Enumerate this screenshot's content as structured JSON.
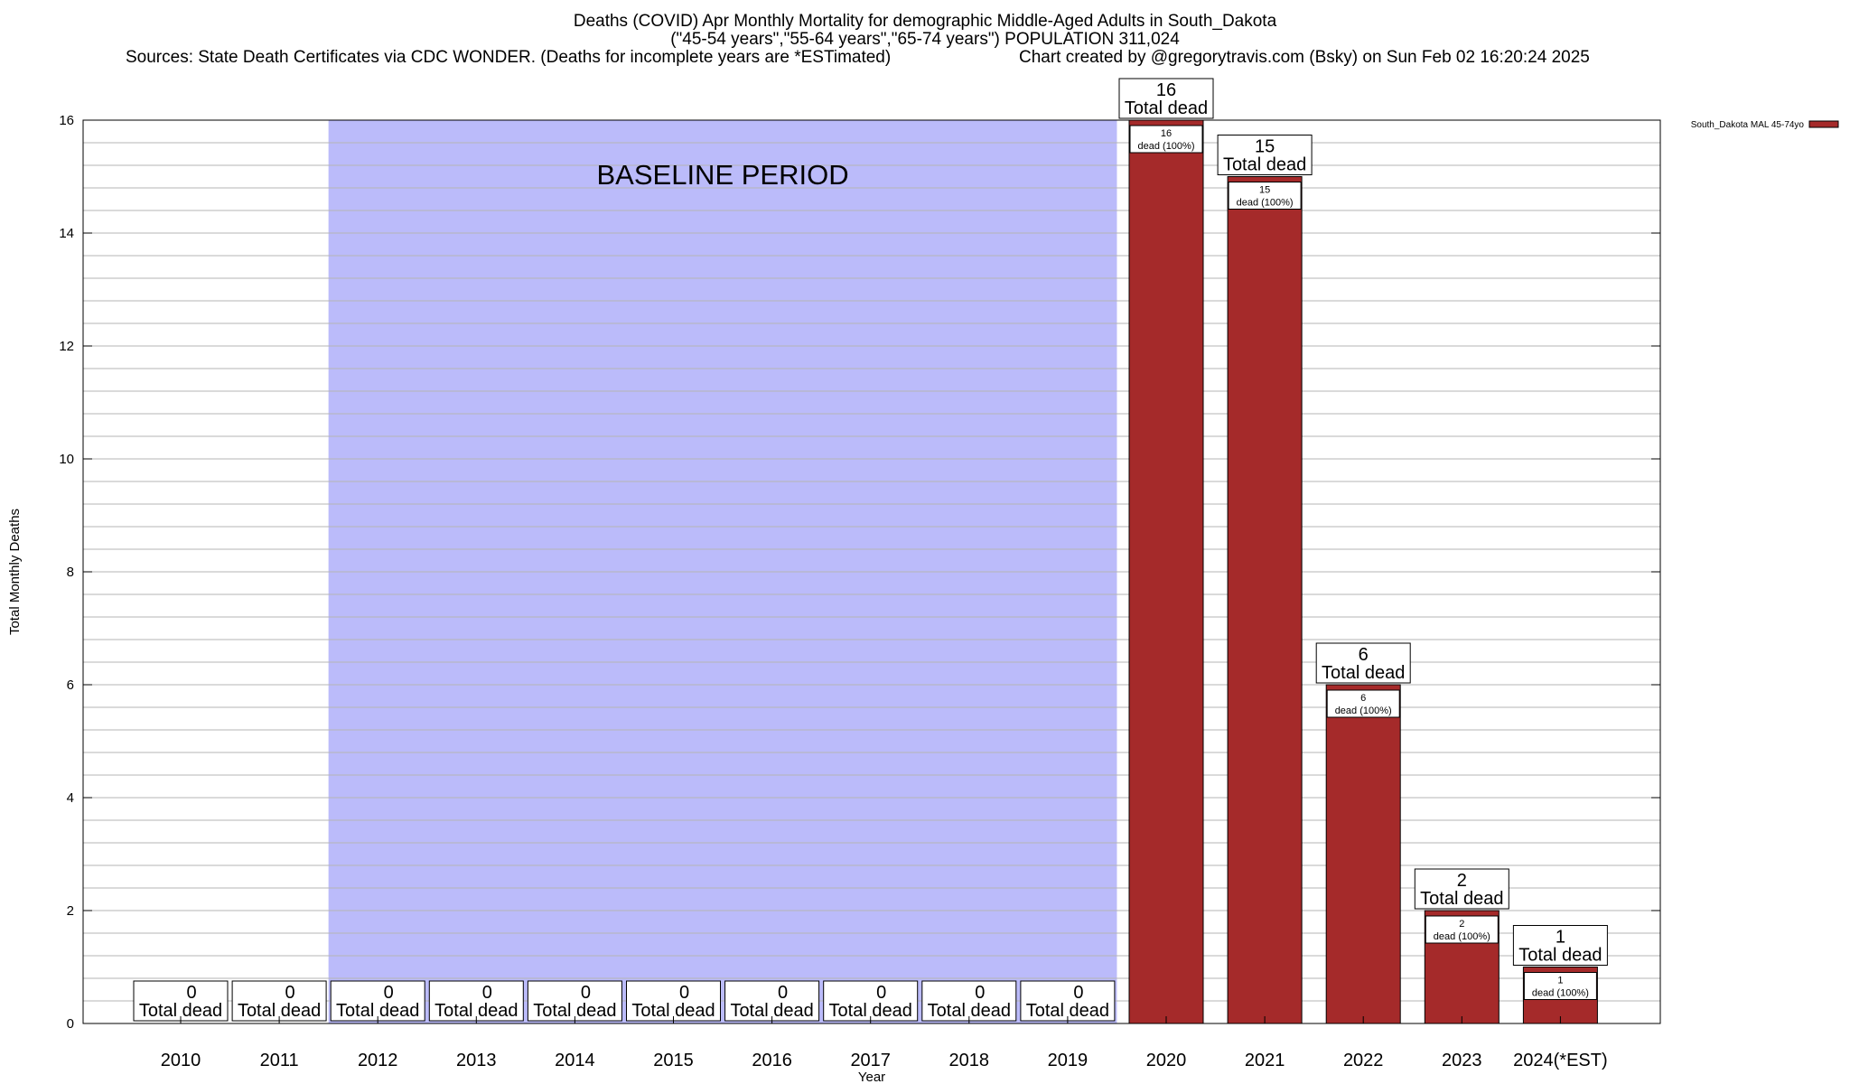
{
  "title_line1": "Deaths (COVID) Apr Monthly Mortality for demographic Middle-Aged Adults in South_Dakota",
  "title_line2": "(\"45-54 years\",\"55-64 years\",\"65-74 years\") POPULATION 311,024",
  "sources_text": "Sources: State Death Certificates via CDC WONDER. (Deaths for incomplete years are *ESTimated)",
  "credit_text": "Chart created by @gregorytravis.com (Bsky) on Sun Feb 02 16:20:24 2025",
  "chart_data": {
    "type": "bar",
    "categories": [
      "2010",
      "2011",
      "2012",
      "2013",
      "2014",
      "2015",
      "2016",
      "2017",
      "2018",
      "2019",
      "2020",
      "2021",
      "2022",
      "2023",
      "2024(*EST)"
    ],
    "series": [
      {
        "name": "South_Dakota MAL 45-74yo",
        "values": [
          0,
          0,
          0,
          0,
          0,
          0,
          0,
          0,
          0,
          0,
          16,
          15,
          6,
          2,
          1
        ]
      }
    ],
    "total_label": "Total dead",
    "inner_label_suffix": "dead (100%)",
    "xlabel": "Year",
    "ylabel": "Total Monthly Deaths",
    "ylim": [
      0,
      16
    ],
    "yticks": [
      0,
      2,
      4,
      6,
      8,
      10,
      12,
      14,
      16
    ],
    "minor_step": 0.4,
    "baseline": {
      "label": "BASELINE PERIOD",
      "from": "2012",
      "to": "2019",
      "color": "#bbbbfa"
    },
    "bar_color": "#a52a2a",
    "grid": true,
    "legend_position": "top-right"
  }
}
